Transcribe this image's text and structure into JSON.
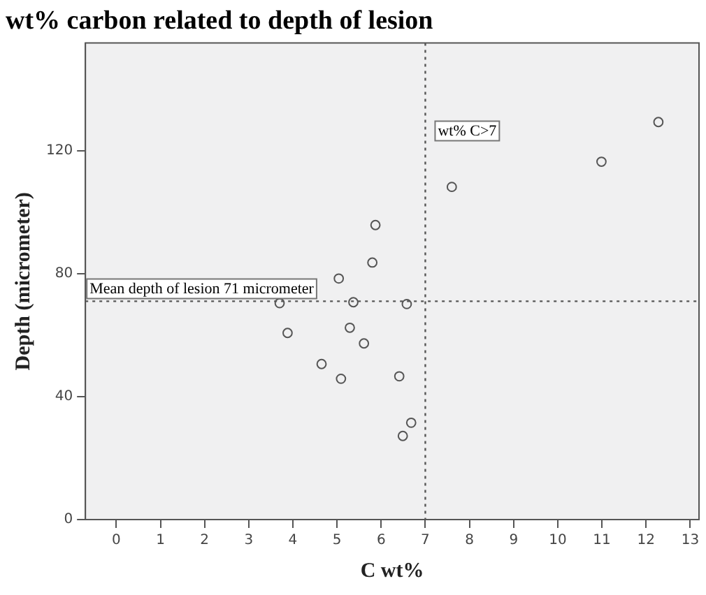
{
  "chart_data": {
    "type": "scatter",
    "title": "wt% carbon related to depth of lesion",
    "xlabel": "C wt%",
    "ylabel": "Depth (micrometer)",
    "x": [
      12.28,
      10.99,
      7.6,
      5.87,
      5.8,
      5.04,
      3.7,
      5.37,
      6.58,
      3.88,
      5.29,
      5.61,
      4.65,
      5.09,
      6.41,
      6.68,
      6.49
    ],
    "series": [
      {
        "color": "#555555",
        "values": [
          129.3,
          116.4,
          108.2,
          95.8,
          83.6,
          78.4,
          70.4,
          70.7,
          70.1,
          60.7,
          62.4,
          57.3,
          50.6,
          45.8,
          46.6,
          31.5,
          27.2
        ]
      }
    ],
    "xlim": [
      -0.7,
      13.2
    ],
    "xticks": [
      0,
      1,
      2,
      3,
      4,
      5,
      6,
      7,
      8,
      9,
      10,
      11,
      12,
      13
    ],
    "ylim": [
      0,
      155
    ],
    "yticks": [
      0,
      40,
      80,
      120
    ],
    "ref_lines": [
      {
        "axis": "y",
        "value": 71,
        "label": "Mean depth of lesion 71 micrometer",
        "line_style": "dotted",
        "color": "#555555"
      },
      {
        "axis": "x",
        "value": 7,
        "label": "wt% C>7",
        "line_style": "dotted",
        "color": "#555555"
      }
    ],
    "marker": "circle",
    "grid": false,
    "legend": false
  }
}
